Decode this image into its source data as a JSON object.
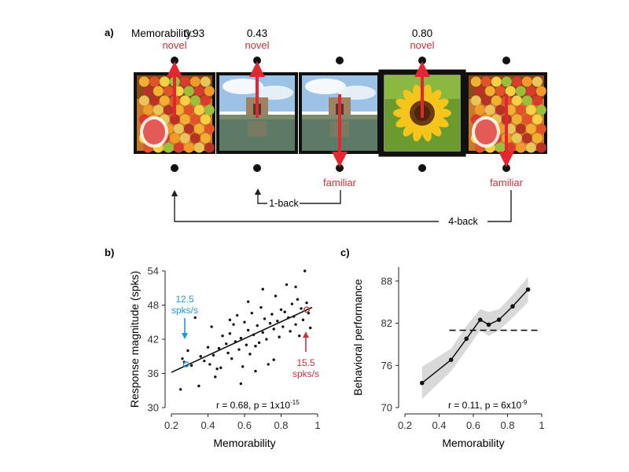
{
  "panel_a": {
    "label": "a)",
    "memorability_prefix": "Memorability:",
    "memorability_values": [
      "0.93",
      "0.43",
      "",
      "0.80",
      ""
    ],
    "top_labels": [
      "novel",
      "novel",
      "",
      "novel",
      ""
    ],
    "bottom_labels": [
      "",
      "",
      "familiar",
      "",
      "familiar"
    ],
    "arrow_dirs": [
      "up",
      "up",
      "down",
      "up",
      "down"
    ],
    "images": [
      "fruit-stand",
      "temple-by-water",
      "temple-by-water",
      "sunflower",
      "fruit-stand"
    ],
    "bracket_1": "1-back",
    "bracket_4": "4-back",
    "colors": {
      "accent_red": "#c8323c",
      "arrow_red": "#e3262f"
    }
  },
  "panel_b": {
    "label": "b)",
    "annotation_blue": [
      "12.5",
      "spks/s"
    ],
    "annotation_red": [
      "15.5",
      "spks/s"
    ],
    "stats": "r = 0.68, p = 1x10",
    "stats_exp": "-15",
    "colors": {
      "blue": "#1f9ad0",
      "red": "#c8323c"
    }
  },
  "panel_c": {
    "label": "c)",
    "stats": "r = 0.11, p = 6x10",
    "stats_exp": "-9"
  },
  "chart_data": [
    {
      "type": "scatter",
      "xlabel": "Memorability",
      "ylabel": "Response magnitude (spks)",
      "xlim": [
        0.2,
        1.0
      ],
      "ylim": [
        30,
        54
      ],
      "xticks": [
        "0.2",
        "0.4",
        "0.6",
        "0.8",
        "1"
      ],
      "yticks": [
        "30",
        "36",
        "42",
        "48",
        "54"
      ],
      "fit_line": {
        "x": [
          0.2,
          0.97
        ],
        "y": [
          36.2,
          47.6
        ]
      },
      "highlight_points": [
        {
          "x": 0.28,
          "y": 37.6,
          "color": "#1f9ad0"
        },
        {
          "x": 0.94,
          "y": 47.2,
          "color": "#c8323c"
        }
      ],
      "points": [
        [
          0.25,
          33.2
        ],
        [
          0.26,
          38.6
        ],
        [
          0.27,
          38.0
        ],
        [
          0.29,
          40.0
        ],
        [
          0.31,
          37.4
        ],
        [
          0.33,
          45.8
        ],
        [
          0.35,
          33.8
        ],
        [
          0.36,
          39.0
        ],
        [
          0.38,
          38.2
        ],
        [
          0.4,
          40.6
        ],
        [
          0.41,
          37.6
        ],
        [
          0.42,
          44.2
        ],
        [
          0.43,
          39.2
        ],
        [
          0.45,
          36.8
        ],
        [
          0.46,
          40.4
        ],
        [
          0.47,
          37.0
        ],
        [
          0.48,
          42.6
        ],
        [
          0.5,
          41.2
        ],
        [
          0.51,
          39.6
        ],
        [
          0.52,
          43.0
        ],
        [
          0.53,
          38.6
        ],
        [
          0.54,
          44.6
        ],
        [
          0.55,
          41.6
        ],
        [
          0.56,
          46.2
        ],
        [
          0.57,
          40.2
        ],
        [
          0.58,
          42.2
        ],
        [
          0.59,
          37.2
        ],
        [
          0.6,
          45.0
        ],
        [
          0.61,
          41.0
        ],
        [
          0.62,
          43.6
        ],
        [
          0.63,
          39.4
        ],
        [
          0.64,
          46.6
        ],
        [
          0.65,
          42.8
        ],
        [
          0.66,
          40.8
        ],
        [
          0.67,
          44.4
        ],
        [
          0.68,
          41.4
        ],
        [
          0.69,
          47.6
        ],
        [
          0.7,
          43.2
        ],
        [
          0.71,
          45.6
        ],
        [
          0.72,
          42.0
        ],
        [
          0.73,
          37.6
        ],
        [
          0.74,
          44.8
        ],
        [
          0.75,
          46.4
        ],
        [
          0.76,
          43.8
        ],
        [
          0.77,
          49.6
        ],
        [
          0.78,
          45.2
        ],
        [
          0.79,
          42.4
        ],
        [
          0.8,
          47.2
        ],
        [
          0.81,
          44.2
        ],
        [
          0.82,
          46.8
        ],
        [
          0.83,
          51.6
        ],
        [
          0.84,
          45.8
        ],
        [
          0.85,
          43.4
        ],
        [
          0.86,
          48.2
        ],
        [
          0.87,
          46.0
        ],
        [
          0.88,
          44.6
        ],
        [
          0.89,
          49.0
        ],
        [
          0.9,
          42.6
        ],
        [
          0.91,
          47.4
        ],
        [
          0.92,
          45.4
        ],
        [
          0.93,
          54.0
        ],
        [
          0.94,
          48.4
        ],
        [
          0.95,
          46.6
        ],
        [
          0.96,
          44.0
        ],
        [
          0.44,
          35.4
        ],
        [
          0.58,
          34.2
        ],
        [
          0.7,
          50.8
        ],
        [
          0.76,
          38.4
        ],
        [
          0.62,
          48.6
        ],
        [
          0.52,
          45.4
        ],
        [
          0.88,
          51.2
        ],
        [
          0.66,
          36.4
        ]
      ]
    },
    {
      "type": "line",
      "xlabel": "Memorability",
      "ylabel": "Behavioral performance",
      "xlim": [
        0.2,
        1.0
      ],
      "ylim": [
        70,
        90
      ],
      "xticks": [
        "0.2",
        "0.4",
        "0.6",
        "0.8",
        "1"
      ],
      "yticks": [
        "70",
        "76",
        "82",
        "88"
      ],
      "x": [
        0.3,
        0.47,
        0.56,
        0.64,
        0.69,
        0.75,
        0.83,
        0.92
      ],
      "y": [
        73.5,
        76.8,
        79.8,
        82.5,
        81.8,
        82.5,
        84.4,
        86.8
      ],
      "ci_upper": [
        75.8,
        78.4,
        81.6,
        84.0,
        83.6,
        84.0,
        86.0,
        88.6
      ],
      "ci_lower": [
        71.2,
        75.2,
        78.2,
        81.0,
        80.2,
        81.0,
        82.8,
        85.0
      ],
      "reference_line_y": 81.0,
      "grid": false
    }
  ]
}
